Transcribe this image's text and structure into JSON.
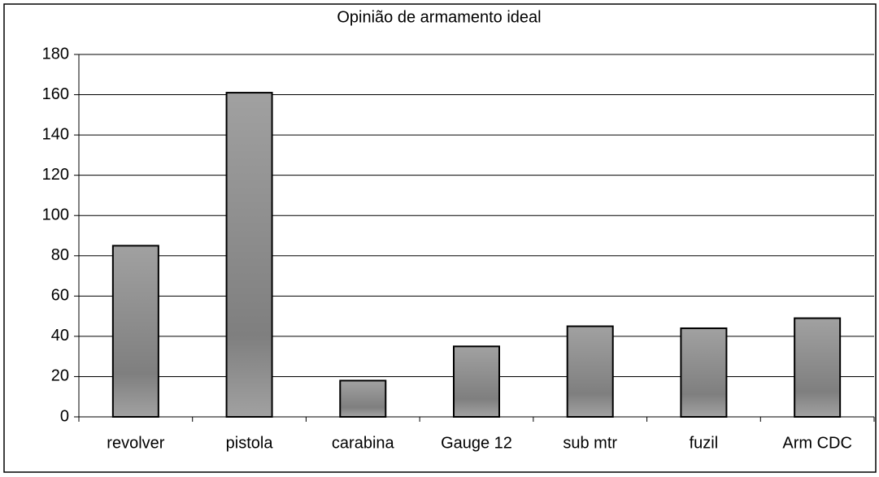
{
  "chart_data": {
    "type": "bar",
    "title": "Opinião de armamento ideal",
    "categories": [
      "revolver",
      "pistola",
      "carabina",
      "Gauge 12",
      "sub mtr",
      "fuzil",
      "Arm CDC"
    ],
    "values": [
      85,
      161,
      18,
      35,
      45,
      44,
      49
    ],
    "color": "#a9a9a9",
    "ylim": [
      0,
      180
    ],
    "yticks": [
      0,
      20,
      40,
      60,
      80,
      100,
      120,
      140,
      160,
      180
    ],
    "grid": true
  }
}
